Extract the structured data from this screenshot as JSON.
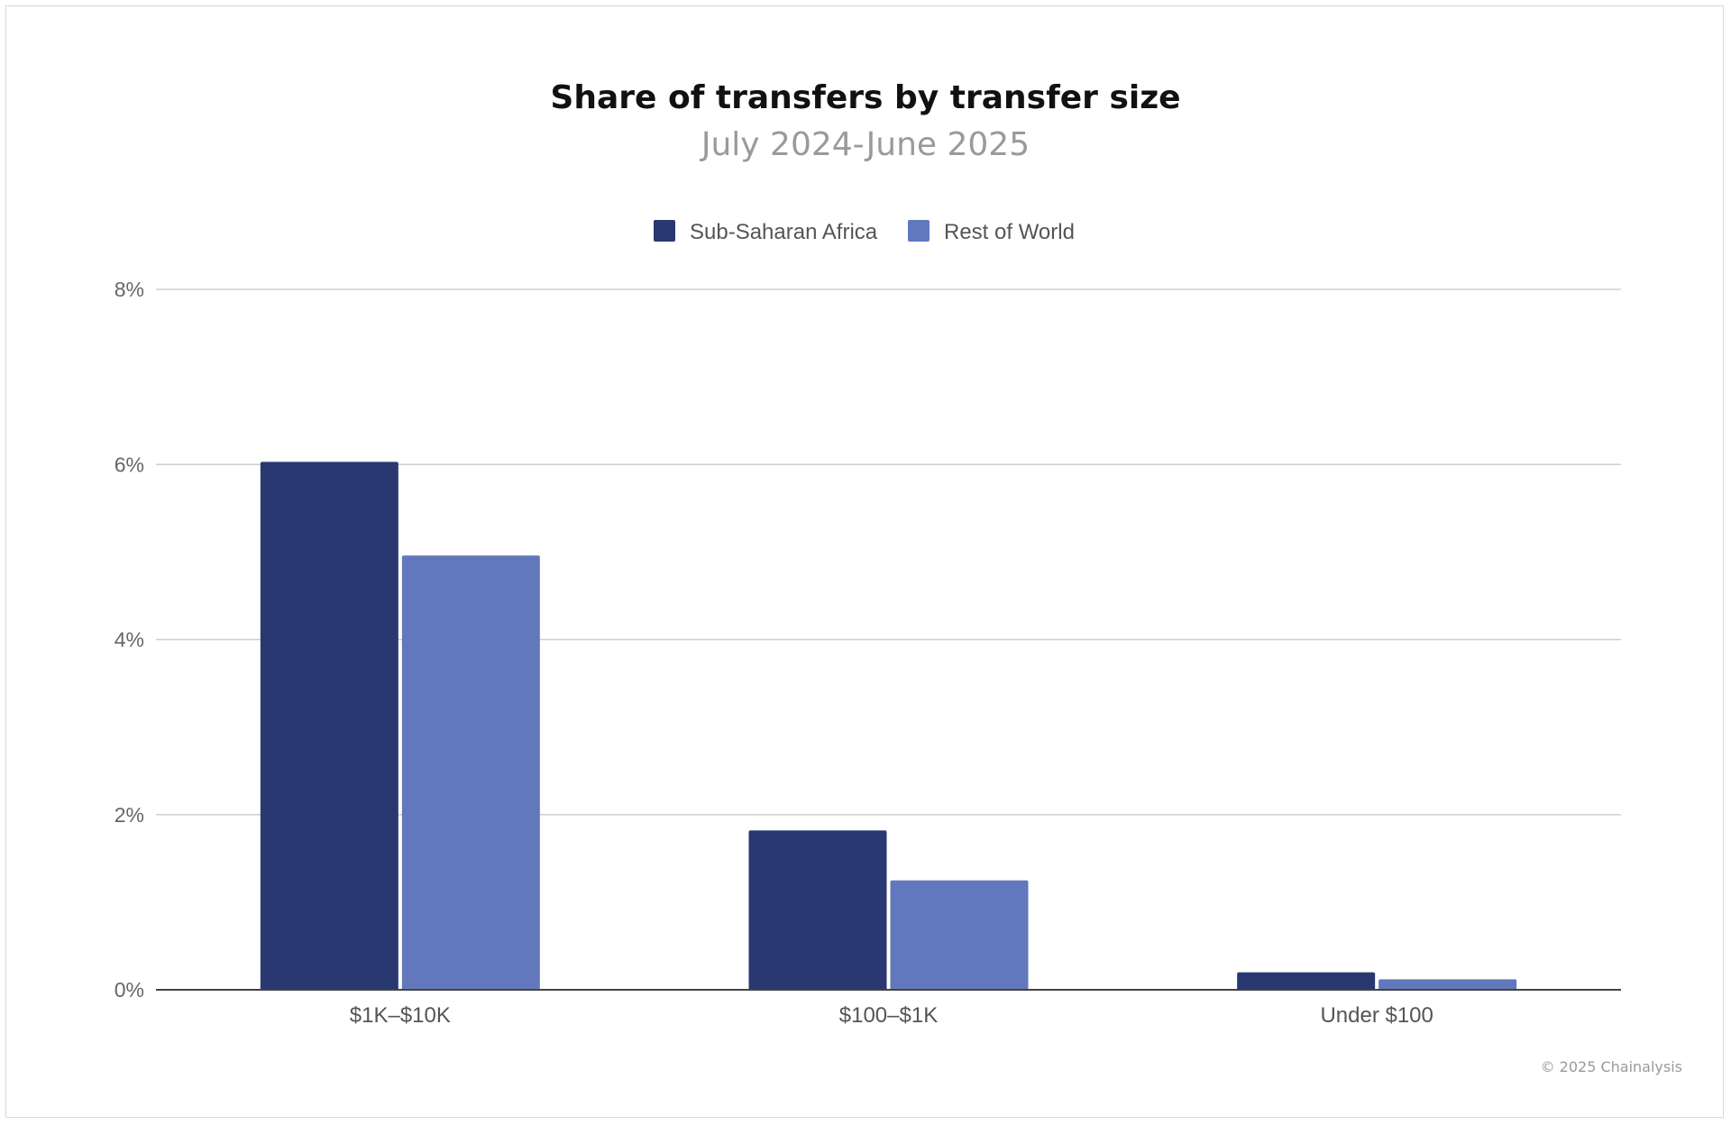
{
  "chart_data": {
    "type": "bar",
    "title": "Share of transfers by transfer size",
    "subtitle": "July 2024-June 2025",
    "categories": [
      "$1K–$10K",
      "$100–$1K",
      "Under $100"
    ],
    "series": [
      {
        "name": "Sub-Saharan Africa",
        "color": "#293871",
        "values": [
          6.03,
          1.82,
          0.2
        ]
      },
      {
        "name": "Rest of World",
        "color": "#6178bc",
        "values": [
          4.96,
          1.25,
          0.12
        ]
      }
    ],
    "y_ticks": [
      "0%",
      "2%",
      "4%",
      "6%",
      "8%"
    ],
    "ylim": [
      0,
      8
    ],
    "unit": "%",
    "xlabel": "",
    "ylabel": "",
    "grid": true,
    "legend_position": "top-center",
    "credit": "© 2025 Chainalysis"
  }
}
